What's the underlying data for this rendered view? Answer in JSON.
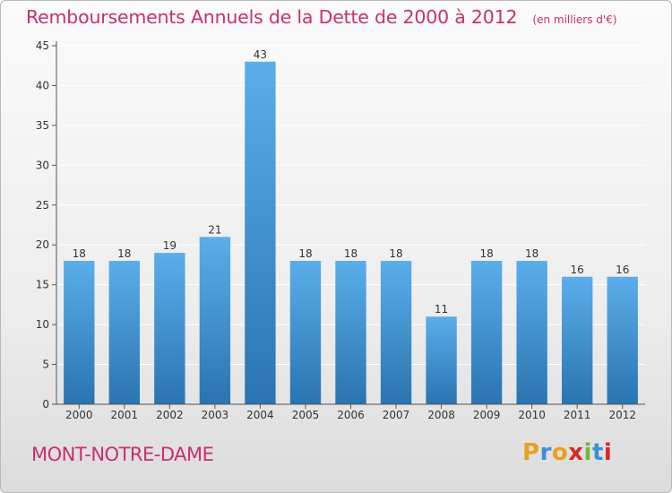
{
  "header": {
    "title": "Remboursements Annuels de la Dette de 2000 à 2012",
    "unit": "(en milliers d'€)"
  },
  "footer": {
    "commune": "MONT-NOTRE-DAME",
    "brand": "Proxiti",
    "brand_colors": [
      "#e8a020",
      "#3c8fd6",
      "#e8a020",
      "#d42a2a",
      "#74b83a",
      "#3c8fd6",
      "#d42a2a"
    ]
  },
  "colors": {
    "bar_top": "#5aaeea",
    "bar_bottom": "#2a74b0",
    "axis": "#555555",
    "grid": "#ffffff",
    "accent": "#c8306e"
  },
  "chart_data": {
    "type": "bar",
    "title": "Remboursements Annuels de la Dette de 2000 à 2012",
    "subtitle": "(en milliers d'€)",
    "categories": [
      "2000",
      "2001",
      "2002",
      "2003",
      "2004",
      "2005",
      "2006",
      "2007",
      "2008",
      "2009",
      "2010",
      "2011",
      "2012"
    ],
    "values": [
      18,
      18,
      19,
      21,
      43,
      18,
      18,
      18,
      11,
      18,
      18,
      16,
      16
    ],
    "ylim": [
      0,
      45
    ],
    "yticks": [
      0,
      5,
      10,
      15,
      20,
      25,
      30,
      35,
      40,
      45
    ],
    "xlabel": "",
    "ylabel": "",
    "grid": true,
    "data_labels": true
  }
}
